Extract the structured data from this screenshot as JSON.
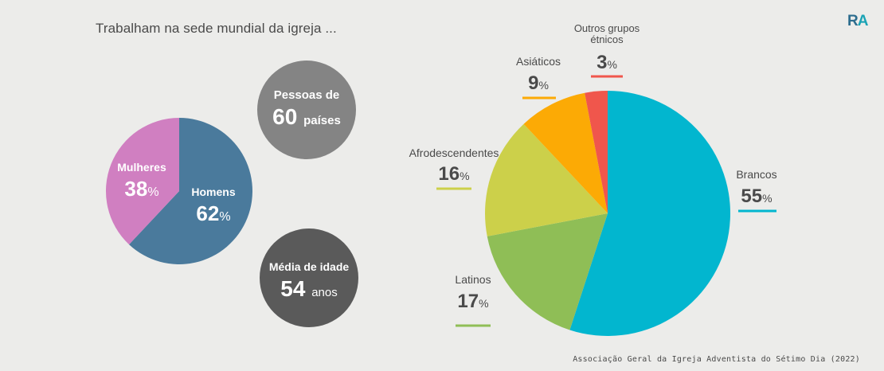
{
  "title": "Trabalham na sede mundial da igreja ...",
  "logo": {
    "r": "R",
    "a": "A"
  },
  "source": "Associação Geral da Igreja Adventista do Sétimo Dia (2022)",
  "circles": {
    "countries": {
      "label": "Pessoas de",
      "value": "60",
      "unit": "países",
      "color": "#848484"
    },
    "age": {
      "label": "Média de idade",
      "value": "54",
      "unit": "anos",
      "color": "#5a5a5a"
    }
  },
  "percent_sign": "%",
  "chart_data": [
    {
      "type": "pie",
      "slices": [
        {
          "label": "Homens",
          "value": 62,
          "color": "#4a7a9c"
        },
        {
          "label": "Mulheres",
          "value": 38,
          "color": "#d07fc1"
        }
      ]
    },
    {
      "type": "pie",
      "slices": [
        {
          "label": "Brancos",
          "value": 55,
          "color": "#02b6cf"
        },
        {
          "label": "Latinos",
          "value": 17,
          "color": "#8fbe56"
        },
        {
          "label": "Afrodescendentes",
          "value": 16,
          "color": "#ccd04a"
        },
        {
          "label": "Asiáticos",
          "value": 9,
          "color": "#fcaa05"
        },
        {
          "label": "Outros grupos étnicos",
          "value": 3,
          "color": "#f0564c"
        }
      ]
    }
  ]
}
